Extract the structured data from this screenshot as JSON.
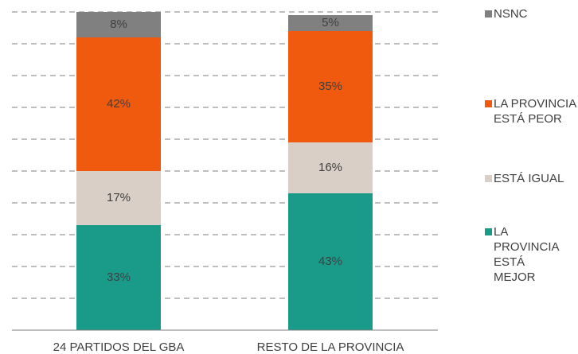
{
  "chart_data": {
    "type": "stacked_bar",
    "categories": [
      "24 PARTIDOS DEL GBA",
      "RESTO DE LA PROVINCIA"
    ],
    "series": [
      {
        "name": "LA PROVINCIA ESTÁ MEJOR",
        "color": "#1a9b8a",
        "values": [
          33,
          43
        ],
        "value_labels": [
          "33%",
          "43%"
        ]
      },
      {
        "name": "ESTÁ IGUAL",
        "color": "#d9cfc6",
        "values": [
          17,
          16
        ],
        "value_labels": [
          "17%",
          "16%"
        ]
      },
      {
        "name": "LA PROVINCIA ESTÁ PEOR",
        "color": "#ef5a0e",
        "values": [
          42,
          35
        ],
        "value_labels": [
          "42%",
          "35%"
        ]
      },
      {
        "name": "NSNC",
        "color": "#808080",
        "values": [
          8,
          5
        ],
        "value_labels": [
          "8%",
          "5%"
        ]
      }
    ],
    "ylim": [
      0,
      100
    ],
    "yticks": [
      10,
      20,
      30,
      40,
      50,
      60,
      70,
      80,
      90,
      100
    ],
    "grid": true
  }
}
